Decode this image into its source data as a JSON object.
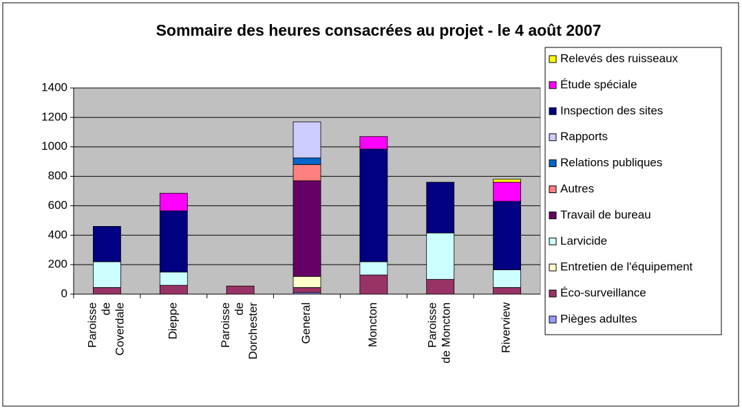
{
  "chart_data": {
    "type": "stacked_bar",
    "title": "Sommaire des heures consacrées au projet - le 4 août 2007",
    "categories": [
      "Paroisse de Coverdale",
      "Dieppe",
      "Paroisse de Dorchester",
      "General",
      "Moncton",
      "Paroisse de Moncton",
      "Riverview"
    ],
    "series": [
      {
        "name": "Pièges adultes",
        "color": "#9999ff",
        "values": [
          0,
          0,
          0,
          10,
          0,
          0,
          0
        ]
      },
      {
        "name": "Éco-surveillance",
        "color": "#993366",
        "values": [
          45,
          60,
          55,
          35,
          130,
          100,
          45
        ]
      },
      {
        "name": "Entretien de l'équipement",
        "color": "#ffffcc",
        "values": [
          0,
          0,
          0,
          75,
          0,
          0,
          0
        ]
      },
      {
        "name": "Larvicide",
        "color": "#ccffff",
        "values": [
          175,
          90,
          0,
          0,
          90,
          315,
          120
        ]
      },
      {
        "name": "Travail de bureau",
        "color": "#660066",
        "values": [
          0,
          0,
          0,
          650,
          0,
          0,
          0
        ]
      },
      {
        "name": "Autres",
        "color": "#ff8080",
        "values": [
          0,
          0,
          0,
          110,
          0,
          0,
          0
        ]
      },
      {
        "name": "Relations publiques",
        "color": "#0066cc",
        "values": [
          0,
          0,
          0,
          45,
          0,
          0,
          0
        ]
      },
      {
        "name": "Rapports",
        "color": "#ccccff",
        "values": [
          0,
          0,
          0,
          245,
          0,
          0,
          0
        ]
      },
      {
        "name": "Inspection des sites",
        "color": "#000080",
        "values": [
          240,
          415,
          0,
          0,
          765,
          345,
          465
        ]
      },
      {
        "name": "Étude spéciale",
        "color": "#ff00ff",
        "values": [
          0,
          120,
          0,
          0,
          85,
          0,
          130
        ]
      },
      {
        "name": "Relevés des ruisseaux",
        "color": "#ffff00",
        "values": [
          0,
          0,
          0,
          0,
          0,
          0,
          20
        ]
      }
    ],
    "ylim": [
      0,
      1400
    ],
    "yticks": [
      0,
      200,
      400,
      600,
      800,
      1000,
      1200,
      1400
    ],
    "grid": true,
    "legend": "right"
  }
}
